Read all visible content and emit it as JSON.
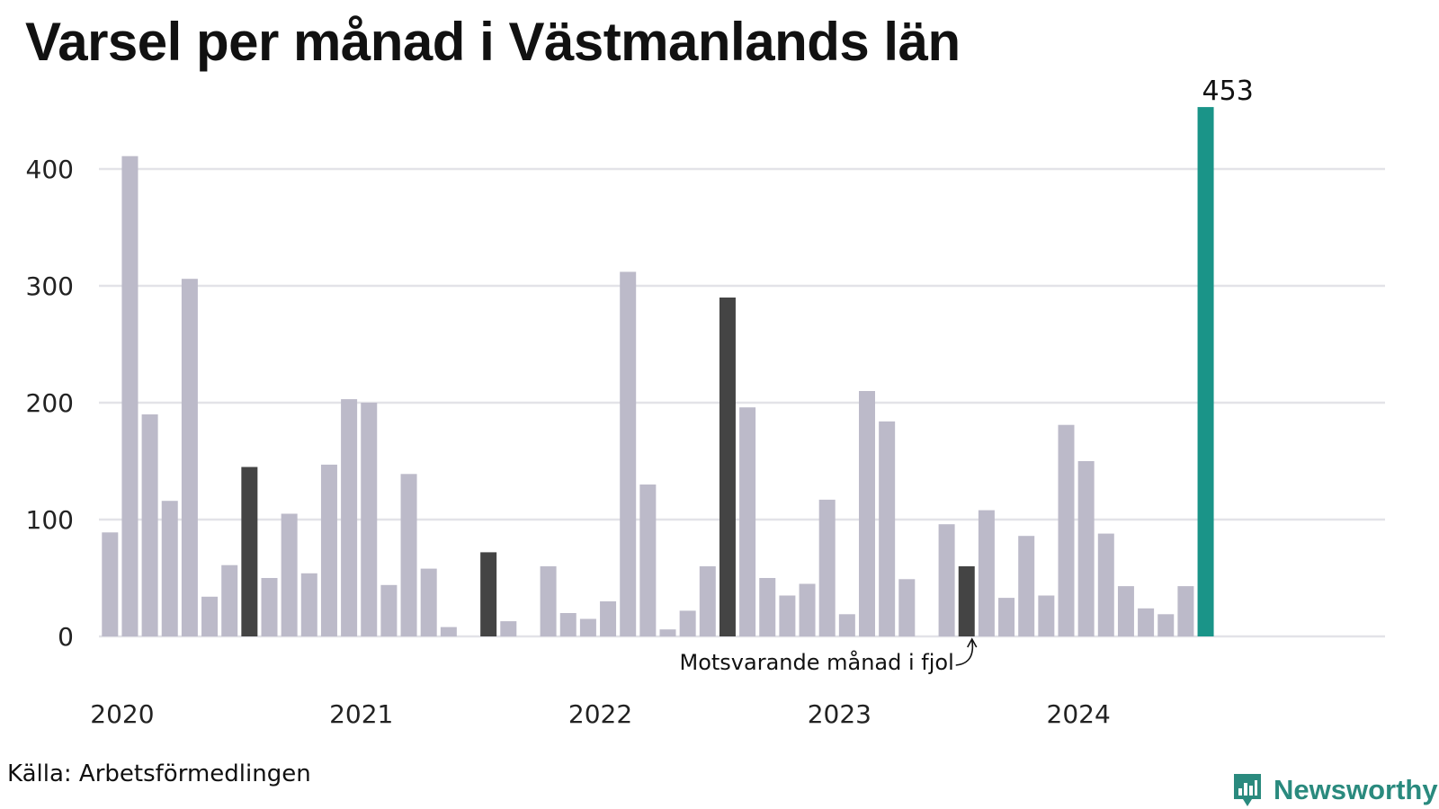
{
  "chart_data": {
    "type": "bar",
    "title": "Varsel per månad i Västmanlands län",
    "source": "Källa: Arbetsförmedlingen",
    "brand": "Newsworthy",
    "annotation": "Motsvarande månad i fjol",
    "x_tick_labels": [
      "2020",
      "2021",
      "2022",
      "2023",
      "2024"
    ],
    "y_ticks": [
      0,
      100,
      200,
      300,
      400
    ],
    "ylim": [
      0,
      460
    ],
    "grid": true,
    "colors": {
      "default": "#bcbac9",
      "same_month": "#444444",
      "latest": "#1a9488",
      "grid": "#e3e3e8",
      "brand": "#2a8a7e"
    },
    "categories": [
      "2020-01",
      "2020-02",
      "2020-03",
      "2020-04",
      "2020-05",
      "2020-06",
      "2020-07",
      "2020-08",
      "2020-09",
      "2020-10",
      "2020-11",
      "2020-12",
      "2021-01",
      "2021-02",
      "2021-03",
      "2021-04",
      "2021-05",
      "2021-06",
      "2021-07",
      "2021-08",
      "2021-09",
      "2021-10",
      "2021-11",
      "2021-12",
      "2022-01",
      "2022-02",
      "2022-03",
      "2022-04",
      "2022-05",
      "2022-06",
      "2022-07",
      "2022-08",
      "2022-09",
      "2022-10",
      "2022-11",
      "2022-12",
      "2023-01",
      "2023-02",
      "2023-03",
      "2023-04",
      "2023-05",
      "2023-06",
      "2023-07",
      "2023-08",
      "2023-09",
      "2023-10",
      "2023-11",
      "2023-12",
      "2024-01",
      "2024-02",
      "2024-03",
      "2024-04",
      "2024-05",
      "2024-06",
      "2024-07",
      "2024-08",
      "2024-09",
      "2024-10",
      "2024-11",
      "2024-12",
      "2025-01",
      "2025-02",
      "2025-03",
      "2025-04",
      "2025-05",
      "2025-06",
      "2025-07",
      "2025-08",
      "2025-09",
      "2025-10",
      "2025-11",
      "2025-12"
    ],
    "values": [
      89,
      411,
      190,
      116,
      306,
      34,
      61,
      145,
      50,
      105,
      54,
      147,
      203,
      200,
      44,
      139,
      58,
      8,
      0,
      72,
      13,
      0,
      60,
      20,
      15,
      30,
      312,
      130,
      6,
      22,
      60,
      290,
      196,
      50,
      35,
      45,
      117,
      19,
      210,
      184,
      49,
      0,
      96,
      60,
      108,
      33,
      86,
      35,
      181,
      150,
      88,
      43,
      24,
      19,
      43,
      453,
      null,
      null,
      null,
      null,
      null,
      null,
      null,
      null,
      null,
      null,
      null,
      null,
      null,
      null,
      null,
      null
    ],
    "highlight_same_month_indices": [
      7,
      19,
      31,
      43
    ],
    "latest_index": 55,
    "latest_value_label": "453"
  }
}
